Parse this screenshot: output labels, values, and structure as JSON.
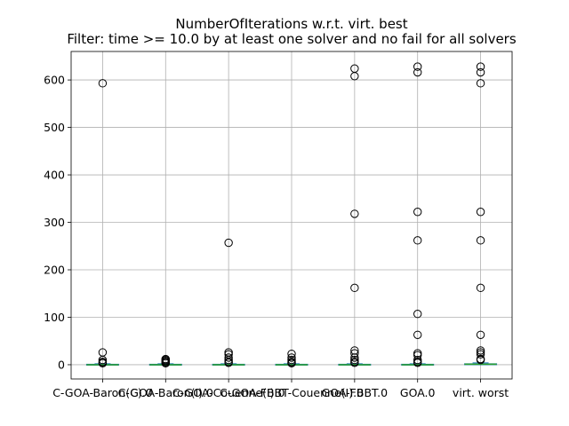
{
  "chart_data": {
    "type": "box",
    "title": "NumberOfIterations w.r.t. virt. best",
    "subtitle": "Filter: time >= 10.0 by at least one solver and no fail for all solvers",
    "xlabel": "",
    "ylabel": "",
    "ylim": [
      -30,
      660
    ],
    "yticks": [
      0,
      100,
      200,
      300,
      400,
      500,
      600
    ],
    "grid": true,
    "categories": [
      "C-GOA-Baron(C).0",
      "C-GOA-Baron(I).0",
      "C-GOA-Couenne(I).0",
      "C-GOA-FBBT-Couenne(I).0",
      "GOA-FBBT.0",
      "GOA.0",
      "virt. worst"
    ],
    "boxes": [
      {
        "q1": 0,
        "median": 0,
        "q3": 1,
        "whisker_low": 0,
        "whisker_high": 2,
        "fliers": [
          593,
          26,
          10,
          6,
          4,
          3
        ]
      },
      {
        "q1": 0,
        "median": 0,
        "q3": 1,
        "whisker_low": 0,
        "whisker_high": 2,
        "fliers": [
          12,
          10,
          8,
          6,
          4,
          3
        ]
      },
      {
        "q1": 0,
        "median": 0,
        "q3": 1,
        "whisker_low": 0,
        "whisker_high": 2,
        "fliers": [
          257,
          26,
          22,
          15,
          10,
          6,
          4
        ]
      },
      {
        "q1": 0,
        "median": 0,
        "q3": 1,
        "whisker_low": 0,
        "whisker_high": 2,
        "fliers": [
          23,
          15,
          10,
          6,
          4,
          3
        ]
      },
      {
        "q1": 0,
        "median": 0,
        "q3": 1,
        "whisker_low": 0,
        "whisker_high": 2,
        "fliers": [
          624,
          608,
          318,
          162,
          30,
          24,
          15,
          10,
          6,
          4
        ]
      },
      {
        "q1": 0,
        "median": 0,
        "q3": 1,
        "whisker_low": 0,
        "whisker_high": 2,
        "fliers": [
          628,
          616,
          322,
          262,
          107,
          63,
          24,
          20,
          10,
          6,
          4
        ]
      },
      {
        "q1": 0,
        "median": 1,
        "q3": 2,
        "whisker_low": 0,
        "whisker_high": 4,
        "fliers": [
          628,
          616,
          593,
          322,
          262,
          162,
          63,
          30,
          26,
          22,
          12,
          10
        ]
      }
    ]
  }
}
